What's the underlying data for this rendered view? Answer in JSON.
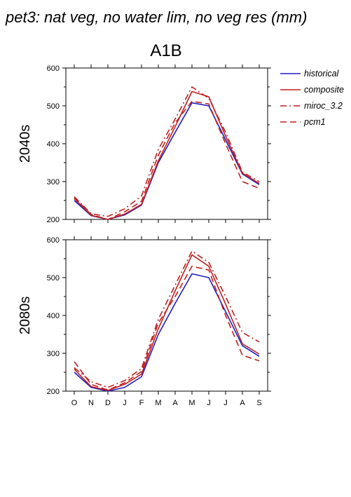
{
  "page": {
    "title": "pet3: nat veg, no water lim, no veg res (mm)",
    "scenario": "A1B"
  },
  "colors": {
    "historical": "#1f1fc0",
    "model": "#c01f1f",
    "axis": "#000000"
  },
  "legend": {
    "placement": "right",
    "items": [
      {
        "label": "historical",
        "dash": "solid",
        "color": "#1f1fc0"
      },
      {
        "label": "composite",
        "dash": "solid",
        "color": "#c01f1f"
      },
      {
        "label": "miroc_3.2",
        "dash": "dashdot",
        "color": "#c01f1f"
      },
      {
        "label": "pcm1",
        "dash": "dashed",
        "color": "#c01f1f"
      }
    ]
  },
  "chart_data": [
    {
      "type": "line",
      "title": "A1B",
      "ylabel": "2040s",
      "ylim": [
        200,
        600
      ],
      "yticks": [
        200,
        300,
        400,
        500,
        600
      ],
      "categories": [
        "O",
        "N",
        "D",
        "J",
        "F",
        "M",
        "A",
        "M",
        "J",
        "J",
        "A",
        "S"
      ],
      "show_xticklabels": false,
      "series": [
        {
          "name": "historical",
          "values": [
            250,
            210,
            200,
            212,
            238,
            350,
            430,
            508,
            500,
            410,
            320,
            292
          ]
        },
        {
          "name": "composite",
          "values": [
            255,
            211,
            200,
            214,
            240,
            355,
            445,
            538,
            524,
            420,
            322,
            295
          ]
        },
        {
          "name": "miroc_3.2",
          "values": [
            260,
            215,
            208,
            228,
            262,
            385,
            465,
            550,
            520,
            430,
            325,
            300
          ]
        },
        {
          "name": "pcm1",
          "values": [
            258,
            213,
            200,
            220,
            248,
            370,
            455,
            512,
            505,
            400,
            300,
            282
          ]
        }
      ]
    },
    {
      "type": "line",
      "title": "",
      "ylabel": "2080s",
      "ylim": [
        200,
        600
      ],
      "yticks": [
        200,
        300,
        400,
        500,
        600
      ],
      "categories": [
        "O",
        "N",
        "D",
        "J",
        "F",
        "M",
        "A",
        "M",
        "J",
        "J",
        "A",
        "S"
      ],
      "show_xticklabels": true,
      "series": [
        {
          "name": "historical",
          "values": [
            250,
            210,
            200,
            210,
            238,
            350,
            432,
            510,
            500,
            410,
            320,
            292
          ]
        },
        {
          "name": "composite",
          "values": [
            258,
            212,
            202,
            218,
            245,
            365,
            465,
            560,
            530,
            430,
            325,
            298
          ]
        },
        {
          "name": "miroc_3.2",
          "values": [
            262,
            225,
            210,
            228,
            260,
            390,
            480,
            570,
            540,
            450,
            355,
            330
          ]
        },
        {
          "name": "pcm1",
          "values": [
            278,
            218,
            203,
            222,
            252,
            380,
            450,
            530,
            520,
            400,
            295,
            280
          ]
        }
      ]
    }
  ]
}
